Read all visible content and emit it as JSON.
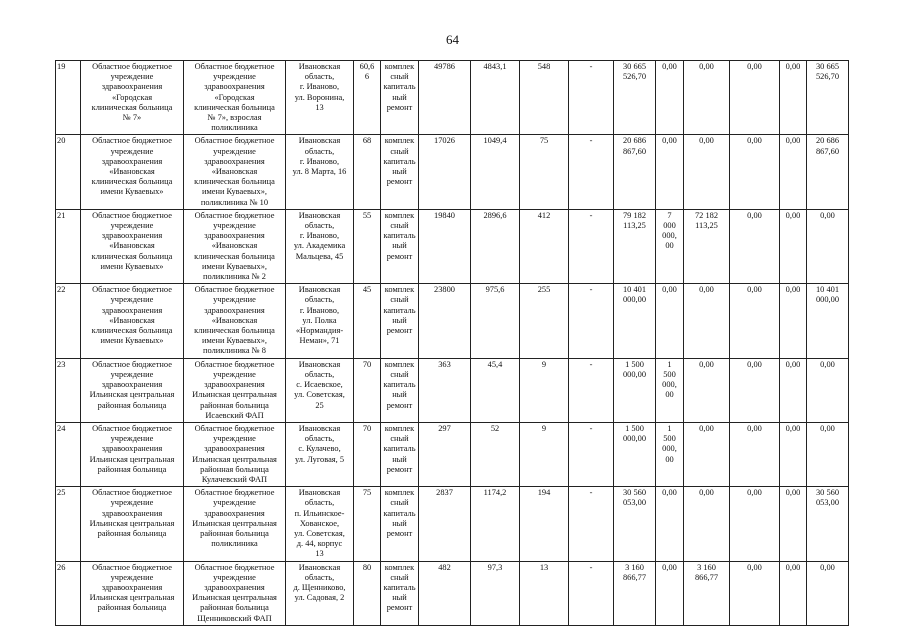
{
  "page_number": "64",
  "rows": [
    {
      "no": "19",
      "org": "Областное бюджетное\nучреждение\nздравоохранения\n«Городская\nклиническая больница\n№ 7»",
      "object": "Областное бюджетное\nучреждение\nздравоохранения\n«Городская\nклиническая больница\n№ 7», взрослая\nполиклиника",
      "address": "Ивановская\nобласть,\nг. Иваново,\nул. Воронина,\n13",
      "wear": "60,6\n6",
      "work": "комплек\nсный\nкапиталь\nный\nремонт",
      "c1": "49786",
      "c2": "4843,1",
      "c3": "548",
      "c4": "-",
      "total": "30 665\n526,70",
      "f1": "0,00",
      "f2": "0,00",
      "f3": "0,00",
      "f4": "0,00",
      "f5": "30 665\n526,70"
    },
    {
      "no": "20",
      "org": "Областное бюджетное\nучреждение\nздравоохранения\n«Ивановская\nклиническая больница\nимени Куваевых»",
      "object": "Областное бюджетное\nучреждение\nздравоохранения\n«Ивановская\nклиническая больница\nимени Куваевых»,\nполиклиника № 10",
      "address": "Ивановская\nобласть,\nг. Иваново,\nул. 8 Марта, 16",
      "wear": "68",
      "work": "комплек\nсный\nкапиталь\nный\nремонт",
      "c1": "17026",
      "c2": "1049,4",
      "c3": "75",
      "c4": "-",
      "total": "20 686\n867,60",
      "f1": "0,00",
      "f2": "0,00",
      "f3": "0,00",
      "f4": "0,00",
      "f5": "20 686\n867,60"
    },
    {
      "no": "21",
      "org": "Областное бюджетное\nучреждение\nздравоохранения\n«Ивановская\nклиническая больница\nимени Куваевых»",
      "object": "Областное бюджетное\nучреждение\nздравоохранения\n«Ивановская\nклиническая больница\nимени Куваевых»,\nполиклиника № 2",
      "address": "Ивановская\nобласть,\nг. Иваново,\nул. Академика\nМальцева, 45",
      "wear": "55",
      "work": "комплек\nсный\nкапиталь\nный\nремонт",
      "c1": "19840",
      "c2": "2896,6",
      "c3": "412",
      "c4": "-",
      "total": "79 182\n113,25",
      "f1": "7\n000\n000,\n00",
      "f2": "72 182\n113,25",
      "f3": "0,00",
      "f4": "0,00",
      "f5": "0,00"
    },
    {
      "no": "22",
      "org": "Областное бюджетное\nучреждение\nздравоохранения\n«Ивановская\nклиническая больница\nимени Куваевых»",
      "object": "Областное бюджетное\nучреждение\nздравоохранения\n«Ивановская\nклиническая больница\nимени Куваевых»,\nполиклиника № 8",
      "address": "Ивановская\nобласть,\nг. Иваново,\nул. Полка\n«Нормандия-\nНеман», 71",
      "wear": "45",
      "work": "комплек\nсный\nкапиталь\nный\nремонт",
      "c1": "23800",
      "c2": "975,6",
      "c3": "255",
      "c4": "-",
      "total": "10 401\n000,00",
      "f1": "0,00",
      "f2": "0,00",
      "f3": "0,00",
      "f4": "0,00",
      "f5": "10 401\n000,00"
    },
    {
      "no": "23",
      "org": "Областное бюджетное\nучреждение\nздравоохранения\nИльинская центральная\nрайонная больница",
      "object": "Областное бюджетное\nучреждение\nздравоохранения\nИльинская центральная\nрайонная больница\nИсаевский ФАП",
      "address": "Ивановская\nобласть,\nс. Исаевское,\nул. Советская,\n25",
      "wear": "70",
      "work": "комплек\nсный\nкапиталь\nный\nремонт",
      "c1": "363",
      "c2": "45,4",
      "c3": "9",
      "c4": "-",
      "total": "1 500\n000,00",
      "f1": "1\n500\n000,\n00",
      "f2": "0,00",
      "f3": "0,00",
      "f4": "0,00",
      "f5": "0,00"
    },
    {
      "no": "24",
      "org": "Областное бюджетное\nучреждение\nздравоохранения\nИльинская центральная\nрайонная больница",
      "object": "Областное бюджетное\nучреждение\nздравоохранения\nИльинская центральная\nрайонная больница\nКулачевский ФАП",
      "address": "Ивановская\nобласть,\nс. Кулачево,\nул. Луговая, 5",
      "wear": "70",
      "work": "комплек\nсный\nкапиталь\nный\nремонт",
      "c1": "297",
      "c2": "52",
      "c3": "9",
      "c4": "-",
      "total": "1 500\n000,00",
      "f1": "1\n500\n000,\n00",
      "f2": "0,00",
      "f3": "0,00",
      "f4": "0,00",
      "f5": "0,00"
    },
    {
      "no": "25",
      "org": "Областное бюджетное\nучреждение\nздравоохранения\nИльинская центральная\nрайонная больница",
      "object": "Областное бюджетное\nучреждение\nздравоохранения\nИльинская центральная\nрайонная больница\nполиклиника",
      "address": "Ивановская\nобласть,\nп. Ильинское-\nХованское,\nул. Советская,\nд. 44, корпус\n13",
      "wear": "75",
      "work": "комплек\nсный\nкапиталь\nный\nремонт",
      "c1": "2837",
      "c2": "1174,2",
      "c3": "194",
      "c4": "-",
      "total": "30 560\n053,00",
      "f1": "0,00",
      "f2": "0,00",
      "f3": "0,00",
      "f4": "0,00",
      "f5": "30 560\n053,00"
    },
    {
      "no": "26",
      "org": "Областное бюджетное\nучреждение\nздравоохранения\nИльинская центральная\nрайонная больница",
      "object": "Областное бюджетное\nучреждение\nздравоохранения\nИльинская центральная\nрайонная больница\nЩенниковский ФАП",
      "address": "Ивановская\nобласть,\nд. Щенниково,\nул. Садовая, 2",
      "wear": "80",
      "work": "комплек\nсный\nкапиталь\nный\nремонт",
      "c1": "482",
      "c2": "97,3",
      "c3": "13",
      "c4": "-",
      "total": "3 160\n866,77",
      "f1": "0,00",
      "f2": "3 160\n866,77",
      "f3": "0,00",
      "f4": "0,00",
      "f5": "0,00"
    }
  ]
}
